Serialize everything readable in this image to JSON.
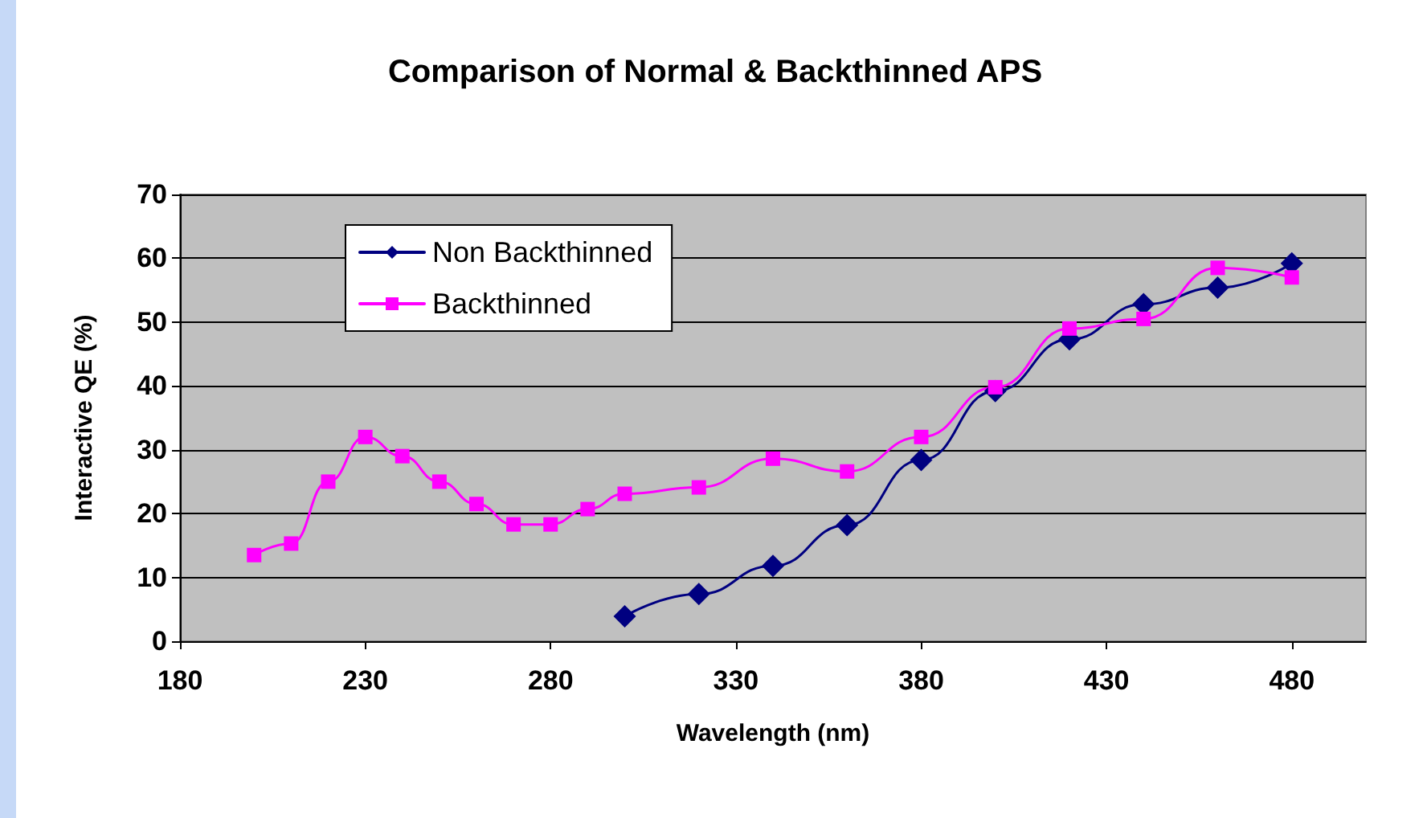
{
  "chart_data": {
    "type": "line",
    "title": "Comparison of Normal & Backthinned APS",
    "xlabel": "Wavelength (nm)",
    "ylabel": "Interactive QE (%)",
    "series": [
      {
        "name": "Non Backthinned",
        "color": "#000080",
        "marker": "diamond",
        "x": [
          300,
          320,
          340,
          360,
          380,
          400,
          420,
          440,
          460,
          480
        ],
        "values": [
          3.9,
          7.4,
          11.8,
          18.2,
          28.4,
          39.2,
          47.3,
          52.8,
          55.4,
          59.2
        ]
      },
      {
        "name": "Backthinned",
        "color": "#ff00ff",
        "marker": "square",
        "x": [
          200,
          210,
          220,
          230,
          240,
          250,
          260,
          270,
          280,
          290,
          300,
          320,
          340,
          360,
          380,
          400,
          420,
          440,
          460,
          480
        ],
        "values": [
          13.5,
          15.3,
          25,
          32,
          29,
          25,
          21.5,
          18.3,
          18.3,
          20.7,
          23.1,
          24.1,
          28.6,
          26.6,
          32,
          39.8,
          49,
          50.5,
          58.5,
          57
        ]
      }
    ],
    "xlim": [
      180,
      500
    ],
    "xticks": [
      180,
      230,
      280,
      330,
      380,
      430,
      480
    ],
    "ylim": [
      0,
      70
    ],
    "yticks": [
      0,
      10,
      20,
      30,
      40,
      50,
      60,
      70
    ],
    "grid": "y",
    "legend": "top left",
    "line_style": "solid"
  }
}
